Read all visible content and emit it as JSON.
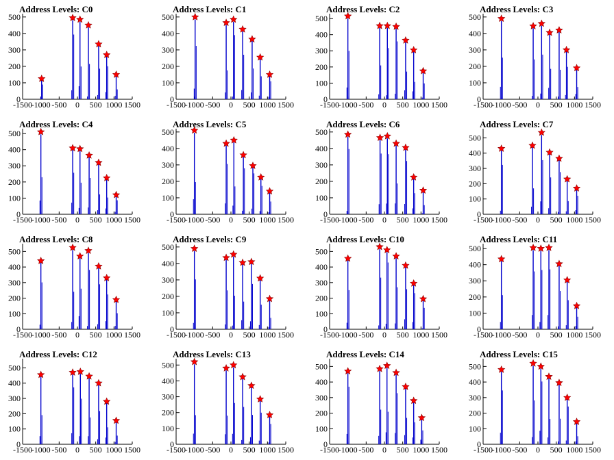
{
  "chart_data": [
    {
      "title": "Address Levels: C0",
      "type": "bar",
      "xlim": [
        -1500,
        1500
      ],
      "ylim": [
        0,
        520
      ],
      "x_ticks": [
        -1500,
        -1000,
        -500,
        0,
        500,
        1000,
        1500
      ],
      "y_ticks": [
        0,
        100,
        200,
        300,
        400,
        500
      ],
      "marker_color": "#ff0000",
      "bar_color": "#0000cc",
      "peaks": [
        {
          "x": -980,
          "y": 125
        },
        {
          "x": -130,
          "y": 495
        },
        {
          "x": 70,
          "y": 485
        },
        {
          "x": 300,
          "y": 450
        },
        {
          "x": 580,
          "y": 335
        },
        {
          "x": 800,
          "y": 270
        },
        {
          "x": 1060,
          "y": 150
        }
      ]
    },
    {
      "title": "Address Levels: C1",
      "type": "bar",
      "xlim": [
        -1500,
        1500
      ],
      "ylim": [
        0,
        520
      ],
      "x_ticks": [
        -1500,
        -1000,
        -500,
        0,
        500,
        1000,
        1500
      ],
      "y_ticks": [
        0,
        100,
        200,
        300,
        400,
        500
      ],
      "marker_color": "#ff0000",
      "bar_color": "#0000cc",
      "peaks": [
        {
          "x": -980,
          "y": 500
        },
        {
          "x": -130,
          "y": 465
        },
        {
          "x": 70,
          "y": 485
        },
        {
          "x": 320,
          "y": 425
        },
        {
          "x": 580,
          "y": 365
        },
        {
          "x": 800,
          "y": 255
        },
        {
          "x": 1060,
          "y": 150
        }
      ]
    },
    {
      "title": "Address Levels: C2",
      "type": "bar",
      "xlim": [
        -1500,
        1500
      ],
      "ylim": [
        0,
        530
      ],
      "x_ticks": [
        -1500,
        -1000,
        -500,
        0,
        500,
        1000,
        1500
      ],
      "y_ticks": [
        0,
        100,
        200,
        300,
        400,
        500
      ],
      "marker_color": "#ff0000",
      "bar_color": "#0000cc",
      "peaks": [
        {
          "x": -1000,
          "y": 515
        },
        {
          "x": -130,
          "y": 455
        },
        {
          "x": 80,
          "y": 455
        },
        {
          "x": 320,
          "y": 450
        },
        {
          "x": 580,
          "y": 365
        },
        {
          "x": 800,
          "y": 305
        },
        {
          "x": 1060,
          "y": 175
        }
      ]
    },
    {
      "title": "Address Levels: C3",
      "type": "bar",
      "xlim": [
        -1500,
        1500
      ],
      "ylim": [
        0,
        520
      ],
      "x_ticks": [
        -1500,
        -1000,
        -500,
        0,
        500,
        1000,
        1500
      ],
      "y_ticks": [
        0,
        100,
        200,
        300,
        400,
        500
      ],
      "marker_color": "#ff0000",
      "bar_color": "#0000cc",
      "peaks": [
        {
          "x": -1000,
          "y": 490
        },
        {
          "x": -130,
          "y": 445
        },
        {
          "x": 100,
          "y": 460
        },
        {
          "x": 320,
          "y": 405
        },
        {
          "x": 580,
          "y": 420
        },
        {
          "x": 780,
          "y": 300
        },
        {
          "x": 1060,
          "y": 190
        }
      ]
    },
    {
      "title": "Address Levels: C4",
      "type": "bar",
      "xlim": [
        -1500,
        1500
      ],
      "ylim": [
        0,
        530
      ],
      "x_ticks": [
        -1500,
        -1000,
        -500,
        0,
        500,
        1000,
        1500
      ],
      "y_ticks": [
        0,
        100,
        200,
        300,
        400,
        500
      ],
      "marker_color": "#ff0000",
      "bar_color": "#0000cc",
      "peaks": [
        {
          "x": -1000,
          "y": 510
        },
        {
          "x": -130,
          "y": 410
        },
        {
          "x": 70,
          "y": 405
        },
        {
          "x": 320,
          "y": 365
        },
        {
          "x": 580,
          "y": 320
        },
        {
          "x": 800,
          "y": 225
        },
        {
          "x": 1060,
          "y": 120
        }
      ]
    },
    {
      "title": "Address Levels: C5",
      "type": "bar",
      "xlim": [
        -1500,
        1500
      ],
      "ylim": [
        0,
        520
      ],
      "x_ticks": [
        -1500,
        -1000,
        -500,
        0,
        500,
        1000,
        1500
      ],
      "y_ticks": [
        0,
        100,
        200,
        300,
        400,
        500
      ],
      "marker_color": "#ff0000",
      "bar_color": "#0000cc",
      "peaks": [
        {
          "x": -1000,
          "y": 510
        },
        {
          "x": -130,
          "y": 430
        },
        {
          "x": 80,
          "y": 450
        },
        {
          "x": 340,
          "y": 360
        },
        {
          "x": 600,
          "y": 295
        },
        {
          "x": 820,
          "y": 225
        },
        {
          "x": 1060,
          "y": 140
        }
      ]
    },
    {
      "title": "Address Levels: C6",
      "type": "bar",
      "xlim": [
        -1500,
        1500
      ],
      "ylim": [
        0,
        520
      ],
      "x_ticks": [
        -1500,
        -1000,
        -500,
        0,
        500,
        1000,
        1500
      ],
      "y_ticks": [
        0,
        100,
        200,
        300,
        400,
        500
      ],
      "marker_color": "#ff0000",
      "bar_color": "#0000cc",
      "peaks": [
        {
          "x": -1000,
          "y": 485
        },
        {
          "x": -120,
          "y": 465
        },
        {
          "x": 80,
          "y": 475
        },
        {
          "x": 320,
          "y": 430
        },
        {
          "x": 580,
          "y": 405
        },
        {
          "x": 800,
          "y": 225
        },
        {
          "x": 1060,
          "y": 145
        }
      ]
    },
    {
      "title": "Address Levels: C7",
      "type": "bar",
      "xlim": [
        -1500,
        1500
      ],
      "ylim": [
        0,
        560
      ],
      "x_ticks": [
        -1500,
        -1000,
        -500,
        0,
        500,
        1000,
        1500
      ],
      "y_ticks": [
        0,
        100,
        200,
        300,
        400,
        500
      ],
      "marker_color": "#ff0000",
      "bar_color": "#0000cc",
      "peaks": [
        {
          "x": -1000,
          "y": 430
        },
        {
          "x": -150,
          "y": 450
        },
        {
          "x": 100,
          "y": 535
        },
        {
          "x": 320,
          "y": 405
        },
        {
          "x": 580,
          "y": 365
        },
        {
          "x": 800,
          "y": 230
        },
        {
          "x": 1060,
          "y": 170
        }
      ]
    },
    {
      "title": "Address Levels: C8",
      "type": "bar",
      "xlim": [
        -1500,
        1500
      ],
      "ylim": [
        0,
        550
      ],
      "x_ticks": [
        -1500,
        -1000,
        -500,
        0,
        500,
        1000,
        1500
      ],
      "y_ticks": [
        0,
        100,
        200,
        300,
        400,
        500
      ],
      "marker_color": "#ff0000",
      "bar_color": "#0000cc",
      "peaks": [
        {
          "x": -1000,
          "y": 440
        },
        {
          "x": -130,
          "y": 525
        },
        {
          "x": 70,
          "y": 470
        },
        {
          "x": 300,
          "y": 505
        },
        {
          "x": 580,
          "y": 405
        },
        {
          "x": 800,
          "y": 330
        },
        {
          "x": 1060,
          "y": 190
        }
      ]
    },
    {
      "title": "Address Levels: C9",
      "type": "bar",
      "xlim": [
        -1500,
        1500
      ],
      "ylim": [
        0,
        520
      ],
      "x_ticks": [
        -1500,
        -1000,
        -500,
        0,
        500,
        1000,
        1500
      ],
      "y_ticks": [
        0,
        100,
        200,
        300,
        400,
        500
      ],
      "marker_color": "#ff0000",
      "bar_color": "#0000cc",
      "peaks": [
        {
          "x": -1000,
          "y": 490
        },
        {
          "x": -130,
          "y": 435
        },
        {
          "x": 70,
          "y": 455
        },
        {
          "x": 320,
          "y": 405
        },
        {
          "x": 560,
          "y": 410
        },
        {
          "x": 800,
          "y": 310
        },
        {
          "x": 1060,
          "y": 185
        }
      ]
    },
    {
      "title": "Address Levels: C10",
      "type": "bar",
      "xlim": [
        -1500,
        1500
      ],
      "ylim": [
        0,
        550
      ],
      "x_ticks": [
        -1500,
        -1000,
        -500,
        0,
        500,
        1000,
        1500
      ],
      "y_ticks": [
        0,
        100,
        200,
        300,
        400,
        500
      ],
      "marker_color": "#ff0000",
      "bar_color": "#0000cc",
      "peaks": [
        {
          "x": -1000,
          "y": 455
        },
        {
          "x": -130,
          "y": 530
        },
        {
          "x": 70,
          "y": 510
        },
        {
          "x": 320,
          "y": 470
        },
        {
          "x": 580,
          "y": 410
        },
        {
          "x": 800,
          "y": 295
        },
        {
          "x": 1060,
          "y": 195
        }
      ]
    },
    {
      "title": "Address Levels: C11",
      "type": "bar",
      "xlim": [
        -1500,
        1500
      ],
      "ylim": [
        0,
        530
      ],
      "x_ticks": [
        -1500,
        -1000,
        -500,
        0,
        500,
        1000,
        1500
      ],
      "y_ticks": [
        0,
        100,
        200,
        300,
        400,
        500
      ],
      "marker_color": "#ff0000",
      "bar_color": "#0000cc",
      "peaks": [
        {
          "x": -1000,
          "y": 435
        },
        {
          "x": -130,
          "y": 505
        },
        {
          "x": 80,
          "y": 500
        },
        {
          "x": 300,
          "y": 505
        },
        {
          "x": 580,
          "y": 405
        },
        {
          "x": 800,
          "y": 305
        },
        {
          "x": 1060,
          "y": 145
        }
      ]
    },
    {
      "title": "Address Levels: C12",
      "type": "bar",
      "xlim": [
        -1500,
        1500
      ],
      "ylim": [
        0,
        560
      ],
      "x_ticks": [
        -1500,
        -1000,
        -500,
        0,
        500,
        1000,
        1500
      ],
      "y_ticks": [
        0,
        100,
        200,
        300,
        400,
        500
      ],
      "marker_color": "#ff0000",
      "bar_color": "#0000cc",
      "peaks": [
        {
          "x": -1000,
          "y": 455
        },
        {
          "x": -130,
          "y": 470
        },
        {
          "x": 80,
          "y": 475
        },
        {
          "x": 320,
          "y": 445
        },
        {
          "x": 580,
          "y": 400
        },
        {
          "x": 800,
          "y": 280
        },
        {
          "x": 1060,
          "y": 155
        }
      ]
    },
    {
      "title": "Address Levels: C13",
      "type": "bar",
      "xlim": [
        -1500,
        1500
      ],
      "ylim": [
        0,
        540
      ],
      "x_ticks": [
        -1500,
        -1000,
        -500,
        0,
        500,
        1000,
        1500
      ],
      "y_ticks": [
        0,
        100,
        200,
        300,
        400,
        500
      ],
      "marker_color": "#ff0000",
      "bar_color": "#0000cc",
      "peaks": [
        {
          "x": -1000,
          "y": 520
        },
        {
          "x": -130,
          "y": 480
        },
        {
          "x": 70,
          "y": 500
        },
        {
          "x": 320,
          "y": 425
        },
        {
          "x": 560,
          "y": 370
        },
        {
          "x": 800,
          "y": 285
        },
        {
          "x": 1060,
          "y": 185
        }
      ]
    },
    {
      "title": "Address Levels: C14",
      "type": "bar",
      "xlim": [
        -1500,
        1500
      ],
      "ylim": [
        0,
        550
      ],
      "x_ticks": [
        -1500,
        -1000,
        -500,
        0,
        500,
        1000,
        1500
      ],
      "y_ticks": [
        0,
        100,
        200,
        300,
        400,
        500
      ],
      "marker_color": "#ff0000",
      "bar_color": "#0000cc",
      "peaks": [
        {
          "x": -1000,
          "y": 470
        },
        {
          "x": -130,
          "y": 485
        },
        {
          "x": 70,
          "y": 505
        },
        {
          "x": 320,
          "y": 460
        },
        {
          "x": 580,
          "y": 370
        },
        {
          "x": 800,
          "y": 280
        },
        {
          "x": 1020,
          "y": 170
        }
      ]
    },
    {
      "title": "Address Levels: C15",
      "type": "bar",
      "xlim": [
        -1500,
        1500
      ],
      "ylim": [
        0,
        550
      ],
      "x_ticks": [
        -1500,
        -1000,
        -500,
        0,
        500,
        1000,
        1500
      ],
      "y_ticks": [
        0,
        100,
        200,
        300,
        400,
        500
      ],
      "marker_color": "#ff0000",
      "bar_color": "#0000cc",
      "peaks": [
        {
          "x": -1000,
          "y": 480
        },
        {
          "x": -130,
          "y": 520
        },
        {
          "x": 80,
          "y": 500
        },
        {
          "x": 300,
          "y": 435
        },
        {
          "x": 580,
          "y": 395
        },
        {
          "x": 800,
          "y": 300
        },
        {
          "x": 1060,
          "y": 145
        }
      ]
    }
  ]
}
